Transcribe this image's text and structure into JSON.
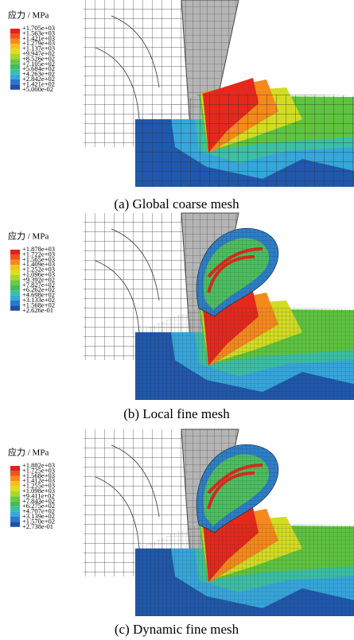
{
  "panels": [
    {
      "legend": {
        "title": "应力 / MPa",
        "labels": [
          "+1.705e+03",
          "+1.563e+03",
          "+1.421e+03",
          "+1.279e+03",
          "+1.137e+03",
          "+9.947e+02",
          "+8.526e+02",
          "+7.105e+02",
          "+5.684e+02",
          "+4.263e+02",
          "+2.842e+02",
          "+1.421e+02",
          "+5.000e-02"
        ]
      },
      "caption": "(a) Global coarse mesh"
    },
    {
      "legend": {
        "title": "应力 / MPa",
        "labels": [
          "+1.878e+03",
          "+1.722e+03",
          "+1.565e+03",
          "+1.409e+03",
          "+1.252e+03",
          "+1.096e+03",
          "+9.392e+02",
          "+7.827e+02",
          "+6.262e+02",
          "+4.698e+02",
          "+3.133e+02",
          "+1.568e+02",
          "+2.626e-01"
        ]
      },
      "caption": "(b) Local fine mesh"
    },
    {
      "legend": {
        "title": "应力 / MPa",
        "labels": [
          "+1.882e+03",
          "+1.725e+03",
          "+1.568e+03",
          "+1.412e+03",
          "+1.255e+03",
          "+1.098e+03",
          "+9.411e+02",
          "+7.843e+02",
          "+6.275e+02",
          "+4.707e+02",
          "+3.139e+02",
          "+1.570e+02",
          "+2.738e-01"
        ]
      },
      "caption": "(c) Dynamic fine mesh"
    }
  ]
}
